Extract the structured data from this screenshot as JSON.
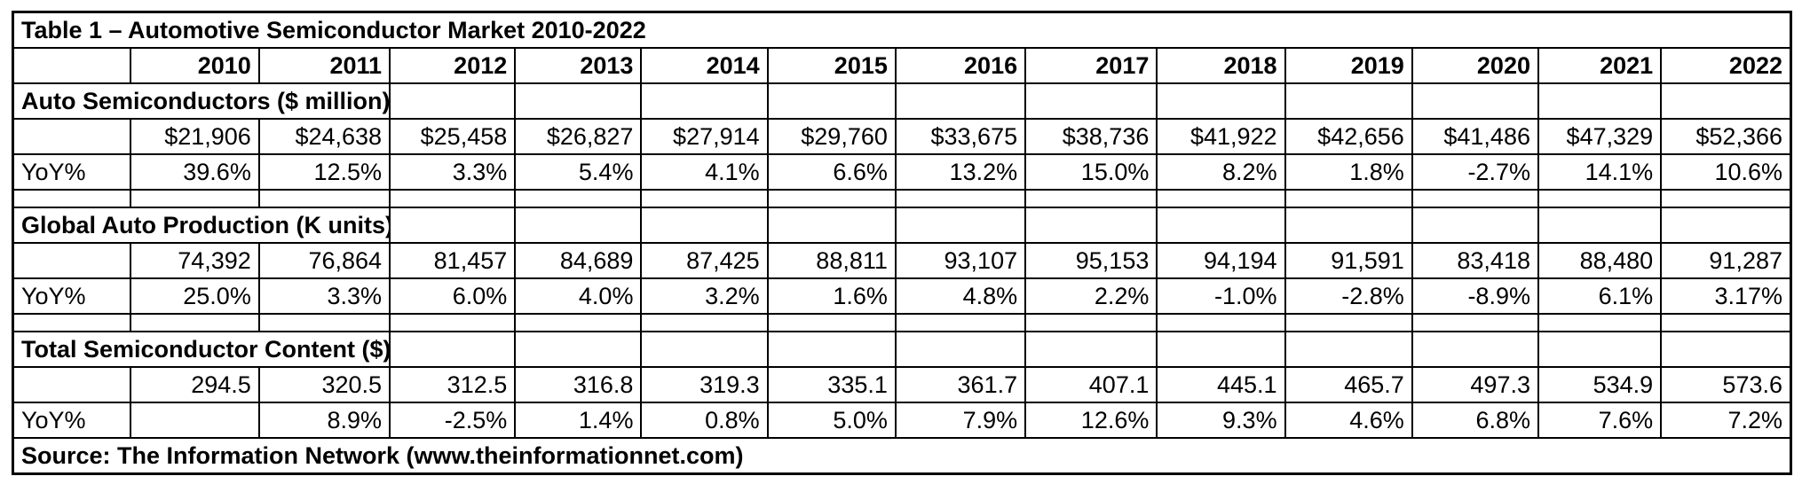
{
  "title": "Table 1 – Automotive Semiconductor Market 2010-2022",
  "years": [
    "2010",
    "2011",
    "2012",
    "2013",
    "2014",
    "2015",
    "2016",
    "2017",
    "2018",
    "2019",
    "2020",
    "2021",
    "2022"
  ],
  "sections": [
    {
      "heading": "Auto Semiconductors ($ million)",
      "value_label": "",
      "values": [
        "$21,906",
        "$24,638",
        "$25,458",
        "$26,827",
        "$27,914",
        "$29,760",
        "$33,675",
        "$38,736",
        "$41,922",
        "$42,656",
        "$41,486",
        "$47,329",
        "$52,366"
      ],
      "yoy_label": "YoY%",
      "yoy": [
        "39.6%",
        "12.5%",
        "3.3%",
        "5.4%",
        "4.1%",
        "6.6%",
        "13.2%",
        "15.0%",
        "8.2%",
        "1.8%",
        "-2.7%",
        "14.1%",
        "10.6%"
      ]
    },
    {
      "heading": "Global Auto Production (K units)",
      "value_label": "",
      "values": [
        "74,392",
        "76,864",
        "81,457",
        "84,689",
        "87,425",
        "88,811",
        "93,107",
        "95,153",
        "94,194",
        "91,591",
        "83,418",
        "88,480",
        "91,287"
      ],
      "yoy_label": "YoY%",
      "yoy": [
        "25.0%",
        "3.3%",
        "6.0%",
        "4.0%",
        "3.2%",
        "1.6%",
        "4.8%",
        "2.2%",
        "-1.0%",
        "-2.8%",
        "-8.9%",
        "6.1%",
        "3.17%"
      ]
    },
    {
      "heading": "Total Semiconductor Content ($)",
      "value_label": "",
      "values": [
        "294.5",
        "320.5",
        "312.5",
        "316.8",
        "319.3",
        "335.1",
        "361.7",
        "407.1",
        "445.1",
        "465.7",
        "497.3",
        "534.9",
        "573.6"
      ],
      "yoy_label": "YoY%",
      "yoy": [
        "",
        "8.9%",
        "-2.5%",
        "1.4%",
        "0.8%",
        "5.0%",
        "7.9%",
        "12.6%",
        "9.3%",
        "4.6%",
        "6.8%",
        "7.6%",
        "7.2%"
      ]
    }
  ],
  "source": "Source: The Information Network (www.theinformationnet.com)"
}
